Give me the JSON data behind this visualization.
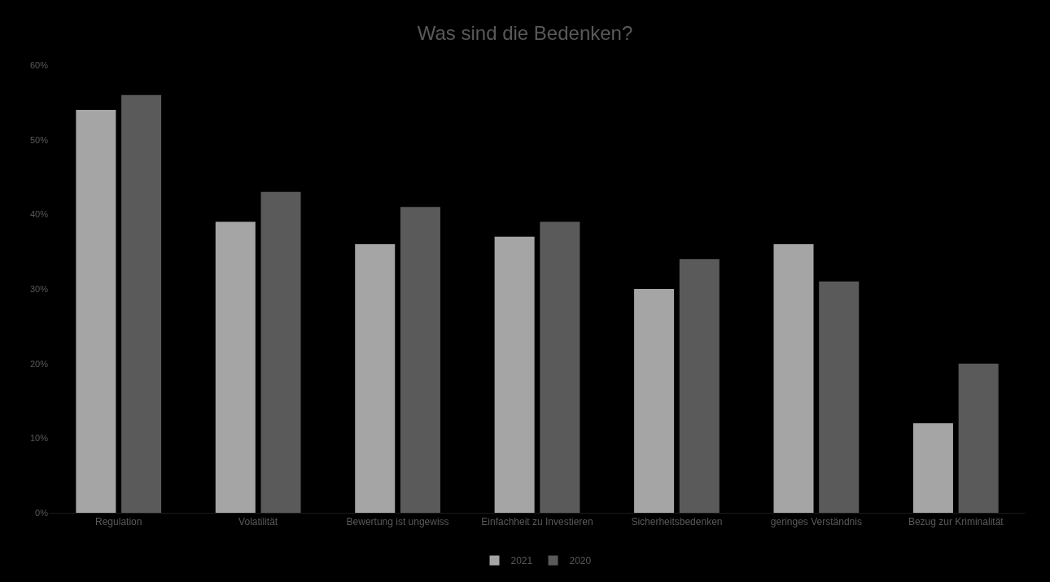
{
  "chart_data": {
    "type": "bar",
    "title": "Was sind die Bedenken?",
    "categories": [
      "Regulation",
      "Volatilität",
      "Bewertung ist ungewiss",
      "Einfachheit zu Investieren",
      "Sicherheitsbedenken",
      "geringes Verständnis",
      "Bezug zur Kriminalität"
    ],
    "series": [
      {
        "name": "2021",
        "color": "#a5a5a5",
        "values": [
          54,
          39,
          36,
          37,
          30,
          36,
          12
        ]
      },
      {
        "name": "2020",
        "color": "#5a5a5a",
        "values": [
          56,
          43,
          41,
          39,
          34,
          31,
          20
        ]
      }
    ],
    "ylim": [
      0,
      60
    ],
    "yticks": [
      {
        "value": 0,
        "label": "0%"
      },
      {
        "value": 10,
        "label": "10%"
      },
      {
        "value": 20,
        "label": "20%"
      },
      {
        "value": 30,
        "label": "30%"
      },
      {
        "value": 40,
        "label": "40%"
      },
      {
        "value": 50,
        "label": "50%"
      },
      {
        "value": 60,
        "label": "60%"
      }
    ],
    "grid": false,
    "legend": "bottom"
  }
}
